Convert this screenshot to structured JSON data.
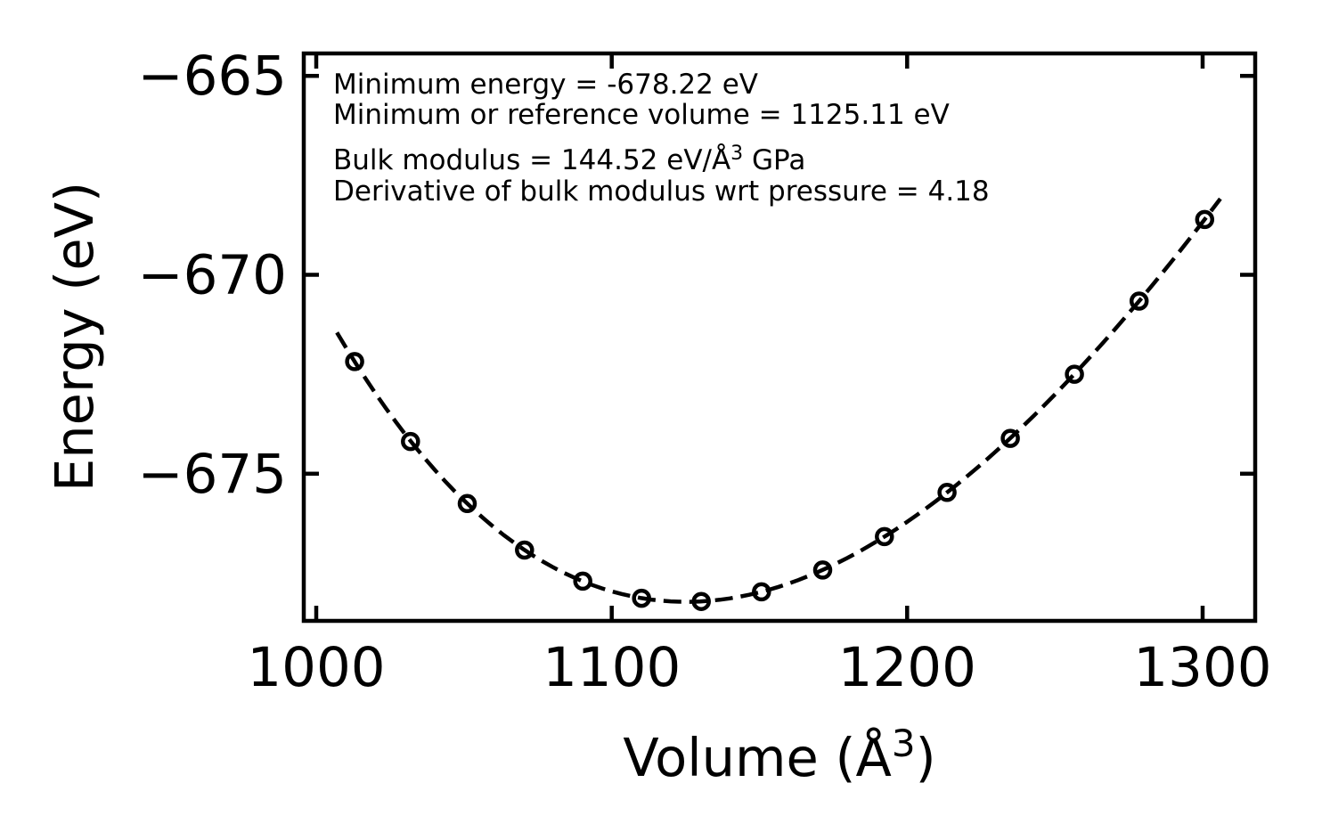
{
  "chart_data": {
    "type": "scatter",
    "title": "",
    "xlabel": "Volume (Å^3)",
    "ylabel": "Energy (eV)",
    "x": [
      1013.0,
      1031.9,
      1051.1,
      1070.5,
      1090.2,
      1110.1,
      1130.3,
      1150.7,
      1171.4,
      1192.3,
      1213.5,
      1234.9,
      1256.6,
      1278.5,
      1300.7
    ],
    "y": [
      -672.18,
      -674.19,
      -675.75,
      -676.92,
      -677.7,
      -678.13,
      -678.21,
      -677.97,
      -677.42,
      -676.58,
      -675.47,
      -674.11,
      -672.5,
      -670.66,
      -668.61
    ],
    "x_ticks": [
      1000,
      1100,
      1200,
      1300
    ],
    "y_ticks": [
      -665,
      -670,
      -675
    ],
    "xlim": [
      996.1,
      1317.9
    ],
    "ylim": [
      -678.7,
      -664.4
    ],
    "grid": false,
    "legend": "none",
    "marker": "open-circle",
    "line_style": "dashed",
    "color": "#000000",
    "fit": {
      "model": "birch-murnaghan",
      "E0_eV": -678.22,
      "V0": 1125.11,
      "B0_GPa": 144.52,
      "Bprime": 4.18
    },
    "annotations": [
      "Minimum energy = -678.22 eV",
      "Minimum or reference volume = 1125.11 eV",
      "Bulk modulus = 144.52 eV/Å^3 GPa",
      "Derivative of bulk modulus wrt pressure = 4.18"
    ]
  },
  "axes": {
    "xlabel_prefix": "Volume (Å",
    "xlabel_sup": "3",
    "xlabel_suffix": ")",
    "ylabel": "Energy (eV)",
    "x_tick_labels": [
      "1000",
      "1100",
      "1200",
      "1300"
    ],
    "y_tick_labels": [
      "−665",
      "−670",
      "−675"
    ]
  },
  "annotation": {
    "line1": "Minimum energy = -678.22 eV",
    "line2": "Minimum or reference volume = 1125.11 eV",
    "line3_prefix": "Bulk modulus = 144.52 eV/Å",
    "line3_sup": "3",
    "line3_suffix": " GPa",
    "line4": "Derivative of bulk modulus wrt pressure = 4.18"
  },
  "style": {
    "foreground": "#000000",
    "background": "#ffffff"
  }
}
